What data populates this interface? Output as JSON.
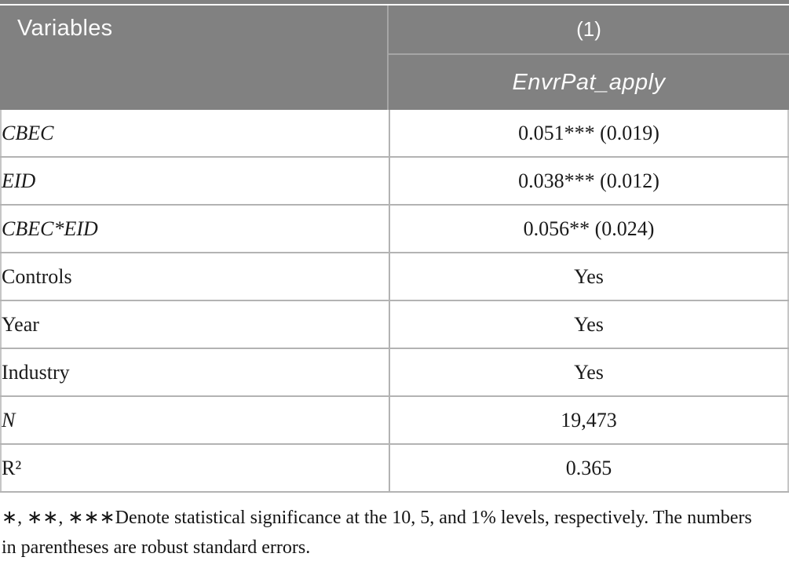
{
  "table": {
    "header": {
      "variables_label": "Variables",
      "model_number": "(1)",
      "dependent_variable": "EnvrPat_apply"
    },
    "rows": [
      {
        "label": "CBEC",
        "value": "0.051*** (0.019)"
      },
      {
        "label": "EID",
        "value": "0.038*** (0.012)"
      },
      {
        "label": "CBEC*EID",
        "value": "0.056** (0.024)"
      },
      {
        "label": "Controls",
        "value": "Yes"
      },
      {
        "label": "Year",
        "value": "Yes"
      },
      {
        "label": "Industry",
        "value": "Yes"
      },
      {
        "label": "N",
        "value": "19,473"
      },
      {
        "label": "R²",
        "value": "0.365"
      }
    ],
    "footnote_lines": [
      "∗, ∗∗, ∗∗∗Denote statistical significance at the 10, 5, and 1% levels, respectively. The numbers",
      "in parentheses are robust standard errors."
    ]
  },
  "colors": {
    "header_background": "#818181",
    "header_text": "#fbfbfb",
    "header_divider": "#a6a6a6",
    "body_divider": "#b3b3b3",
    "body_text": "#1a1a1a"
  }
}
